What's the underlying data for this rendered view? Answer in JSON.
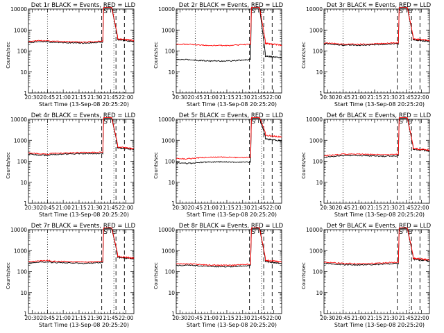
{
  "figure": {
    "background": "#ffffff",
    "events_color": "#000000",
    "lld_color": "#ff0000"
  },
  "chart_data": [
    {
      "type": "line",
      "title": "Det 1r BLACK = Events, RED = LLD",
      "xlabel": "Start Time (13-Sep-08 20:25:20)",
      "ylabel": "Counts/sec",
      "ylog": true,
      "ylim": [
        1,
        10000
      ],
      "xtick_labels": [
        "20:30",
        "20:45",
        "21:00",
        "21:15",
        "21:30",
        "21:45",
        "22:00"
      ],
      "ytick_labels": [
        "1",
        "10",
        "100",
        "1000",
        "10000"
      ],
      "markers": [
        "S",
        "E"
      ],
      "series": [
        {
          "name": "Events",
          "color": "#000000",
          "baseline": 250,
          "end": 300
        },
        {
          "name": "LLD",
          "color": "#ff0000",
          "baseline": 280,
          "end": 330
        }
      ]
    },
    {
      "type": "line",
      "title": "Det 2r BLACK = Events, RED = LLD",
      "xlabel": "Start Time (13-Sep-08 20:25:20)",
      "ylabel": "Counts/sec",
      "ylog": true,
      "ylim": [
        1,
        10000
      ],
      "xtick_labels": [
        "20:30",
        "20:45",
        "21:00",
        "21:15",
        "21:30",
        "21:45",
        "22:00"
      ],
      "ytick_labels": [
        "1",
        "10",
        "100",
        "1000",
        "10000"
      ],
      "markers": [
        "S",
        "E"
      ],
      "series": [
        {
          "name": "Events",
          "color": "#000000",
          "baseline": 35,
          "end": 50
        },
        {
          "name": "LLD",
          "color": "#ff0000",
          "baseline": 190,
          "end": 200
        }
      ]
    },
    {
      "type": "line",
      "title": "Det 3r BLACK = Events, RED = LLD",
      "xlabel": "Start Time (13-Sep-08 20:25:20)",
      "ylabel": "Counts/sec",
      "ylog": true,
      "ylim": [
        1,
        10000
      ],
      "xtick_labels": [
        "20:30",
        "20:45",
        "21:00",
        "21:15",
        "21:30",
        "21:45",
        "22:00"
      ],
      "ytick_labels": [
        "1",
        "10",
        "100",
        "1000",
        "10000"
      ],
      "markers": [
        "S",
        "E"
      ],
      "series": [
        {
          "name": "Events",
          "color": "#000000",
          "baseline": 200,
          "end": 300
        },
        {
          "name": "LLD",
          "color": "#ff0000",
          "baseline": 220,
          "end": 330
        }
      ]
    },
    {
      "type": "line",
      "title": "Det 4r BLACK = Events, RED = LLD",
      "xlabel": "Start Time (13-Sep-08 20:25:20)",
      "ylabel": "Counts/sec",
      "ylog": true,
      "ylim": [
        1,
        10000
      ],
      "xtick_labels": [
        "20:30",
        "20:45",
        "21:00",
        "21:15",
        "21:30",
        "21:45",
        "22:00"
      ],
      "ytick_labels": [
        "1",
        "10",
        "100",
        "1000",
        "10000"
      ],
      "markers": [
        "S",
        "E"
      ],
      "series": [
        {
          "name": "Events",
          "color": "#000000",
          "baseline": 220,
          "end": 380
        },
        {
          "name": "LLD",
          "color": "#ff0000",
          "baseline": 250,
          "end": 420
        }
      ]
    },
    {
      "type": "line",
      "title": "Det 5r BLACK = Events, RED = LLD",
      "xlabel": "Start Time (13-Sep-08 20:25:20)",
      "ylabel": "Counts/sec",
      "ylog": true,
      "ylim": [
        1,
        10000
      ],
      "xtick_labels": [
        "20:30",
        "20:45",
        "21:00",
        "21:15",
        "21:30",
        "21:45",
        "22:00"
      ],
      "ytick_labels": [
        "1",
        "10",
        "100",
        "1000",
        "10000"
      ],
      "markers": [
        "S",
        "E"
      ],
      "series": [
        {
          "name": "Events",
          "color": "#000000",
          "baseline": 90,
          "end": 1000
        },
        {
          "name": "LLD",
          "color": "#ff0000",
          "baseline": 150,
          "end": 1500
        }
      ]
    },
    {
      "type": "line",
      "title": "Det 6r BLACK = Events, RED = LLD",
      "xlabel": "Start Time (13-Sep-08 20:25:20)",
      "ylabel": "Counts/sec",
      "ylog": true,
      "ylim": [
        1,
        10000
      ],
      "xtick_labels": [
        "20:30",
        "20:45",
        "21:00",
        "21:15",
        "21:30",
        "21:45",
        "22:00"
      ],
      "ytick_labels": [
        "1",
        "10",
        "100",
        "1000",
        "10000"
      ],
      "markers": [
        "S",
        "E"
      ],
      "series": [
        {
          "name": "Events",
          "color": "#000000",
          "baseline": 180,
          "end": 330
        },
        {
          "name": "LLD",
          "color": "#ff0000",
          "baseline": 210,
          "end": 360
        }
      ]
    },
    {
      "type": "line",
      "title": "Det 7r BLACK = Events, RED = LLD",
      "xlabel": "Start Time (13-Sep-08 20:25:20)",
      "ylabel": "Counts/sec",
      "ylog": true,
      "ylim": [
        1,
        10000
      ],
      "xtick_labels": [
        "20:30",
        "20:45",
        "21:00",
        "21:15",
        "21:30",
        "21:45",
        "22:00"
      ],
      "ytick_labels": [
        "1",
        "10",
        "100",
        "1000",
        "10000"
      ],
      "markers": [
        "S",
        "E"
      ],
      "series": [
        {
          "name": "Events",
          "color": "#000000",
          "baseline": 260,
          "end": 420
        },
        {
          "name": "LLD",
          "color": "#ff0000",
          "baseline": 300,
          "end": 460
        }
      ]
    },
    {
      "type": "line",
      "title": "Det 8r BLACK = Events, RED = LLD",
      "xlabel": "Start Time (13-Sep-08 20:25:20)",
      "ylabel": "Counts/sec",
      "ylog": true,
      "ylim": [
        1,
        10000
      ],
      "xtick_labels": [
        "20:30",
        "20:45",
        "21:00",
        "21:15",
        "21:30",
        "21:45",
        "22:00"
      ],
      "ytick_labels": [
        "1",
        "10",
        "100",
        "1000",
        "10000"
      ],
      "markers": [
        "S",
        "E"
      ],
      "series": [
        {
          "name": "Events",
          "color": "#000000",
          "baseline": 180,
          "end": 260
        },
        {
          "name": "LLD",
          "color": "#ff0000",
          "baseline": 210,
          "end": 300
        }
      ]
    },
    {
      "type": "line",
      "title": "Det 9r BLACK = Events, RED = LLD",
      "xlabel": "Start Time (13-Sep-08 20:25:20)",
      "ylabel": "Counts/sec",
      "ylog": true,
      "ylim": [
        1,
        10000
      ],
      "xtick_labels": [
        "20:30",
        "20:45",
        "21:00",
        "21:15",
        "21:30",
        "21:45",
        "22:00"
      ],
      "ytick_labels": [
        "1",
        "10",
        "100",
        "1000",
        "10000"
      ],
      "markers": [
        "S",
        "E"
      ],
      "series": [
        {
          "name": "Events",
          "color": "#000000",
          "baseline": 220,
          "end": 340
        },
        {
          "name": "LLD",
          "color": "#ff0000",
          "baseline": 250,
          "end": 380
        }
      ]
    }
  ]
}
